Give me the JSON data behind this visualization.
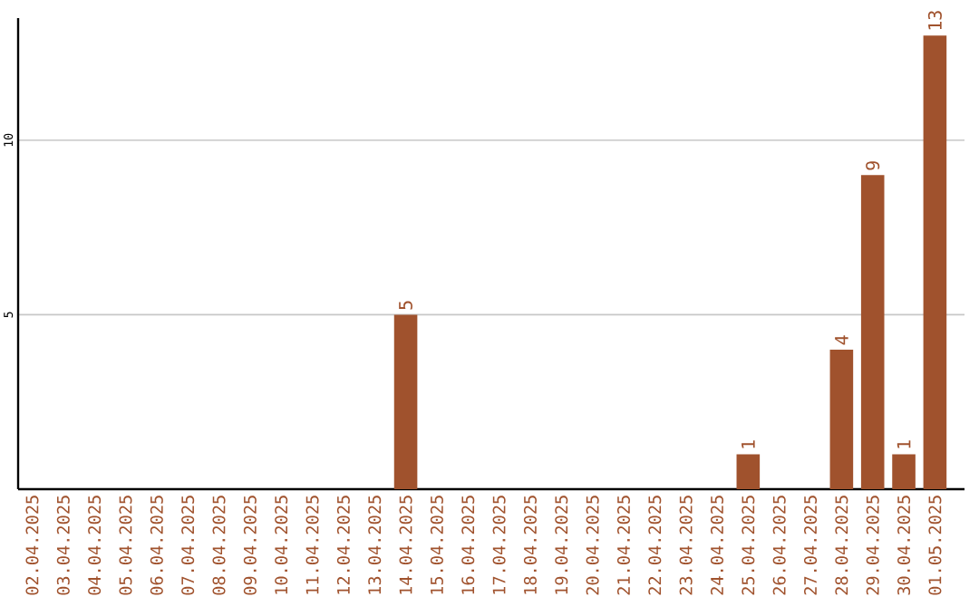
{
  "chart_data": {
    "type": "bar",
    "categories": [
      "02.04.2025",
      "03.04.2025",
      "04.04.2025",
      "05.04.2025",
      "06.04.2025",
      "07.04.2025",
      "08.04.2025",
      "09.04.2025",
      "10.04.2025",
      "11.04.2025",
      "12.04.2025",
      "13.04.2025",
      "14.04.2025",
      "15.04.2025",
      "16.04.2025",
      "17.04.2025",
      "18.04.2025",
      "19.04.2025",
      "20.04.2025",
      "21.04.2025",
      "22.04.2025",
      "23.04.2025",
      "24.04.2025",
      "25.04.2025",
      "26.04.2025",
      "27.04.2025",
      "28.04.2025",
      "29.04.2025",
      "30.04.2025",
      "01.05.2025"
    ],
    "values": [
      0,
      0,
      0,
      0,
      0,
      0,
      0,
      0,
      0,
      0,
      0,
      0,
      5,
      0,
      0,
      0,
      0,
      0,
      0,
      0,
      0,
      0,
      0,
      1,
      0,
      0,
      4,
      9,
      1,
      13
    ],
    "value_labels": [
      null,
      null,
      null,
      null,
      null,
      null,
      null,
      null,
      null,
      null,
      null,
      null,
      "5",
      null,
      null,
      null,
      null,
      null,
      null,
      null,
      null,
      null,
      null,
      "1",
      null,
      null,
      "4",
      "9",
      "1",
      "13"
    ],
    "color": "#a0522d",
    "ylim": [
      0,
      13.5
    ],
    "yticks": [
      5,
      10
    ],
    "grid": "y"
  }
}
